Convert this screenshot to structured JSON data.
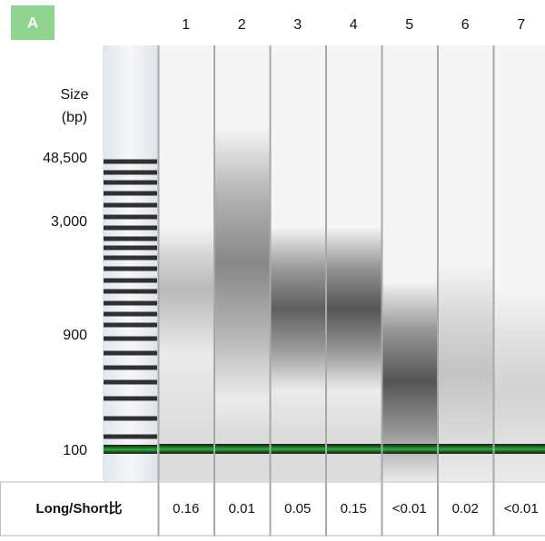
{
  "header": {
    "label": "A",
    "lanes": [
      "1",
      "2",
      "3",
      "4",
      "5",
      "6",
      "7"
    ]
  },
  "size_axis": {
    "title": "Size",
    "unit": "(bp)",
    "markers": [
      "48,500",
      "3,000",
      "900",
      "100"
    ]
  },
  "table": {
    "header": "Long/Short比",
    "values": [
      "0.16",
      "0.01",
      "0.05",
      "0.15",
      "<0.01",
      "0.02",
      "<0.01"
    ]
  }
}
